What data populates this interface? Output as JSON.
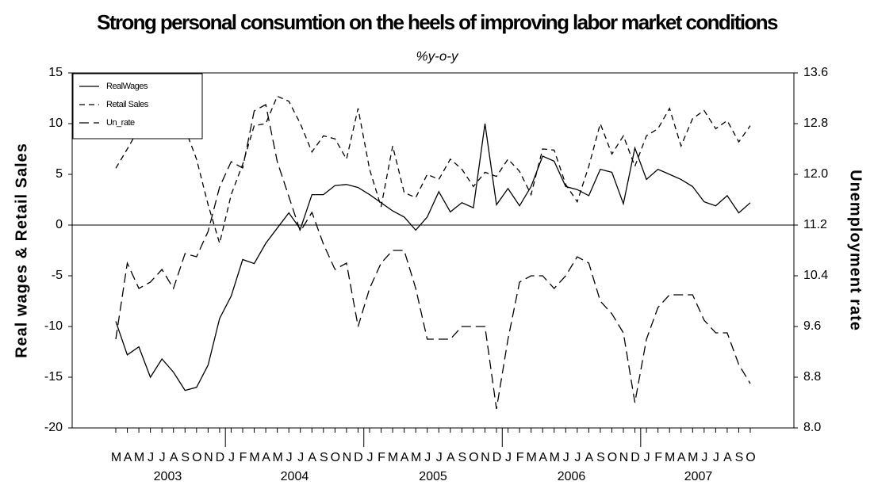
{
  "chart_data": {
    "type": "line",
    "title": "Strong personal consumtion on the heels of improving labor market conditions",
    "subtitle": "%y-o-y",
    "y_label": "Real wages & Retail Sales",
    "y2_label": "Unemployment rate",
    "categories": [
      "M",
      "A",
      "M",
      "J",
      "J",
      "A",
      "S",
      "O",
      "N",
      "D",
      "J",
      "F",
      "M",
      "A",
      "M",
      "J",
      "J",
      "A",
      "S",
      "O",
      "N",
      "D",
      "J",
      "F",
      "M",
      "A",
      "M",
      "J",
      "J",
      "A",
      "S",
      "O",
      "N",
      "D",
      "J",
      "F",
      "M",
      "A",
      "M",
      "J",
      "J",
      "A",
      "S",
      "O",
      "N",
      "D",
      "J",
      "F",
      "M",
      "A",
      "M",
      "J",
      "J",
      "A",
      "S",
      "O"
    ],
    "years": [
      "2003",
      "2004",
      "2005",
      "2006",
      "2007"
    ],
    "ylim": [
      -20,
      15
    ],
    "yticks": [
      15,
      10,
      5,
      0,
      -5,
      -10,
      -15,
      -20
    ],
    "y2lim": [
      8,
      13.6
    ],
    "y2ticks": [
      13.6,
      12.8,
      {
        "value": 12,
        "label": "12.0"
      },
      11.2,
      10.4,
      9.6,
      8.8,
      {
        "value": 8,
        "label": "8.0"
      }
    ],
    "series": [
      {
        "name": "RealWages",
        "color": "#000000",
        "linestyle": "solid",
        "values": [
          -9.5,
          -12.8,
          -12,
          -15,
          -13.2,
          -14.5,
          -16.3,
          -16,
          -13.8,
          -9.2,
          -7,
          -3.4,
          -3.8,
          -1.8,
          -0.3,
          1.2,
          -0.4,
          3,
          3,
          3.9,
          4,
          3.7,
          3,
          2.2,
          1.4,
          0.8,
          -0.5,
          0.8,
          3.3,
          1.3,
          2.2,
          1.7,
          10,
          2,
          3.6,
          1.9,
          3.8,
          6.8,
          6.3,
          3.8,
          3.5,
          2.9,
          5.5,
          5.2,
          2.1,
          7.6,
          4.5,
          5.5,
          5,
          4.5,
          3.8,
          2.3,
          1.9,
          2.9,
          1.2,
          2.2
        ]
      },
      {
        "name": "Retail Sales",
        "color": "#000000",
        "linestyle": "dashed",
        "values": [
          5.6,
          7.5,
          9.5,
          11,
          12.5,
          13,
          9.5,
          6.5,
          2,
          -1.8,
          3,
          6,
          9.8,
          10,
          12.7,
          12.2,
          10,
          7.2,
          8.8,
          8.5,
          6.5,
          11.5,
          5.5,
          1.8,
          7.8,
          3.2,
          2.7,
          5,
          4.5,
          6.5,
          5.5,
          3.8,
          5.2,
          4.8,
          6.5,
          5.3,
          3,
          7.5,
          7.4,
          4,
          2.3,
          5.8,
          10,
          7,
          8.8,
          5.8,
          8.8,
          9.5,
          11.5,
          7.8,
          10.5,
          11.3,
          9.5,
          10.3,
          8.2,
          9.8
        ]
      },
      {
        "name": "Un_rate",
        "color": "#000000",
        "linestyle": "longdash",
        "axis": "y2",
        "values": [
          9.4,
          10.6,
          10.2,
          10.3,
          10.5,
          10.2,
          10.75,
          10.7,
          11.1,
          11.8,
          12.2,
          12.1,
          13,
          13.1,
          12.2,
          11.65,
          11.1,
          11.4,
          10.9,
          10.5,
          10.6,
          9.6,
          10.2,
          10.6,
          10.8,
          10.8,
          10.2,
          9.4,
          9.4,
          9.4,
          9.6,
          9.6,
          9.6,
          8.3,
          9.4,
          10.3,
          10.4,
          10.4,
          10.2,
          10.4,
          10.7,
          10.6,
          10,
          9.8,
          9.5,
          8.4,
          9.4,
          9.9,
          10.1,
          10.1,
          10.1,
          9.7,
          9.5,
          9.5,
          9,
          8.7
        ]
      }
    ]
  }
}
